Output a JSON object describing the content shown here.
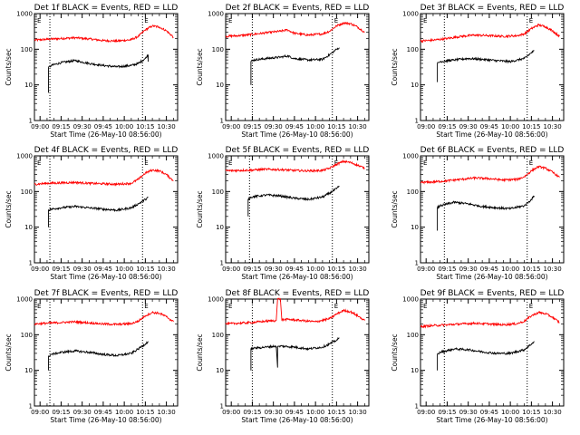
{
  "chart_data": {
    "type": "line",
    "panel_grid": {
      "columns": 3,
      "rows": 3
    },
    "common": {
      "xlabel": "Start Time (26-May-10 08:56:00)",
      "ylabel": "Counts/sec",
      "y_scale": "log",
      "ylim": [
        1,
        1000
      ],
      "xlim": [
        "08:56",
        "10:38"
      ],
      "y_ticks": [
        "1",
        "10",
        "100",
        "1000"
      ],
      "x_ticks": [
        "09:00",
        "09:15",
        "09:30",
        "09:45",
        "10:00",
        "10:15",
        "10:30"
      ],
      "marker_label": "E",
      "grid": false,
      "series": [
        {
          "name": "Events",
          "color": "#000000"
        },
        {
          "name": "LLD",
          "color": "#ff0000"
        }
      ]
    },
    "panels": [
      {
        "title": "Det 1f BLACK = Events, RED = LLD",
        "vlines": [
          "09:07",
          "10:13"
        ],
        "series_values": {
          "Events": {
            "x": [
              "09:06",
              "09:06",
              "09:08",
              "09:15",
              "09:25",
              "09:35",
              "09:45",
              "09:55",
              "10:05",
              "10:10",
              "10:15",
              "10:17",
              "10:17"
            ],
            "y": [
              6,
              30,
              35,
              42,
              48,
              40,
              35,
              32,
              35,
              40,
              55,
              70,
              45
            ]
          },
          "LLD": {
            "x": [
              "08:56",
              "09:05",
              "09:15",
              "09:25",
              "09:35",
              "09:45",
              "09:55",
              "10:05",
              "10:10",
              "10:15",
              "10:20",
              "10:25",
              "10:30",
              "10:35"
            ],
            "y": [
              180,
              190,
              200,
              210,
              195,
              175,
              170,
              185,
              230,
              350,
              450,
              420,
              330,
              220
            ]
          }
        }
      },
      {
        "title": "Det 2f BLACK = Events, RED = LLD",
        "vlines": [
          "09:15",
          "10:12"
        ],
        "series_values": {
          "Events": {
            "x": [
              "09:14",
              "09:14",
              "09:16",
              "09:25",
              "09:35",
              "09:40",
              "09:45",
              "09:55",
              "10:05",
              "10:10",
              "10:15",
              "10:17"
            ],
            "y": [
              10,
              45,
              50,
              55,
              60,
              65,
              55,
              50,
              52,
              70,
              100,
              110
            ]
          },
          "LLD": {
            "x": [
              "08:56",
              "09:05",
              "09:15",
              "09:25",
              "09:35",
              "09:40",
              "09:45",
              "09:55",
              "10:05",
              "10:10",
              "10:15",
              "10:20",
              "10:25",
              "10:30",
              "10:35"
            ],
            "y": [
              230,
              240,
              260,
              290,
              320,
              350,
              280,
              250,
              270,
              320,
              450,
              550,
              520,
              420,
              300
            ]
          }
        }
      },
      {
        "title": "Det 3f BLACK = Events, RED = LLD",
        "vlines": [
          "09:13",
          "10:12"
        ],
        "series_values": {
          "Events": {
            "x": [
              "09:08",
              "09:08",
              "09:10",
              "09:20",
              "09:30",
              "09:40",
              "09:50",
              "10:00",
              "10:10",
              "10:15",
              "10:17"
            ],
            "y": [
              12,
              40,
              45,
              50,
              55,
              52,
              48,
              45,
              55,
              80,
              90
            ]
          },
          "LLD": {
            "x": [
              "08:56",
              "09:05",
              "09:15",
              "09:25",
              "09:35",
              "09:45",
              "09:55",
              "10:05",
              "10:10",
              "10:15",
              "10:20",
              "10:25",
              "10:30",
              "10:35"
            ],
            "y": [
              170,
              180,
              200,
              230,
              250,
              240,
              230,
              240,
              270,
              380,
              480,
              430,
              330,
              230
            ]
          }
        }
      },
      {
        "title": "Det 4f BLACK = Events, RED = LLD",
        "vlines": [
          "09:07",
          "10:13"
        ],
        "series_values": {
          "Events": {
            "x": [
              "09:06",
              "09:06",
              "09:08",
              "09:15",
              "09:25",
              "09:35",
              "09:45",
              "09:55",
              "10:05",
              "10:10",
              "10:15",
              "10:17"
            ],
            "y": [
              10,
              30,
              32,
              35,
              38,
              35,
              32,
              30,
              35,
              45,
              60,
              70
            ]
          },
          "LLD": {
            "x": [
              "08:56",
              "09:05",
              "09:15",
              "09:25",
              "09:35",
              "09:45",
              "09:55",
              "10:05",
              "10:10",
              "10:15",
              "10:20",
              "10:25",
              "10:30",
              "10:35"
            ],
            "y": [
              160,
              170,
              175,
              180,
              170,
              165,
              160,
              170,
              220,
              330,
              400,
              380,
              300,
              200
            ]
          }
        }
      },
      {
        "title": "Det 5f BLACK = Events, RED = LLD",
        "vlines": [
          "09:13",
          "10:12"
        ],
        "series_values": {
          "Events": {
            "x": [
              "09:12",
              "09:12",
              "09:14",
              "09:25",
              "09:35",
              "09:45",
              "09:55",
              "10:05",
              "10:10",
              "10:15",
              "10:17"
            ],
            "y": [
              20,
              60,
              70,
              80,
              75,
              65,
              60,
              70,
              90,
              120,
              140
            ]
          },
          "LLD": {
            "x": [
              "08:56",
              "09:05",
              "09:15",
              "09:25",
              "09:35",
              "09:45",
              "09:55",
              "10:05",
              "10:10",
              "10:15",
              "10:20",
              "10:25",
              "10:30",
              "10:35"
            ],
            "y": [
              380,
              390,
              400,
              420,
              410,
              390,
              380,
              390,
              450,
              580,
              700,
              650,
              550,
              450
            ]
          }
        }
      },
      {
        "title": "Det 6f BLACK = Events, RED = LLD",
        "vlines": [
          "09:13",
          "10:12"
        ],
        "series_values": {
          "Events": {
            "x": [
              "09:08",
              "09:08",
              "09:10",
              "09:20",
              "09:30",
              "09:40",
              "09:50",
              "10:00",
              "10:10",
              "10:15",
              "10:17"
            ],
            "y": [
              8,
              35,
              40,
              50,
              45,
              38,
              35,
              33,
              40,
              60,
              75
            ]
          },
          "LLD": {
            "x": [
              "08:56",
              "09:05",
              "09:15",
              "09:25",
              "09:35",
              "09:45",
              "09:55",
              "10:05",
              "10:10",
              "10:15",
              "10:20",
              "10:25",
              "10:30",
              "10:35"
            ],
            "y": [
              180,
              185,
              200,
              220,
              240,
              230,
              210,
              220,
              260,
              380,
              500,
              450,
              350,
              250
            ]
          }
        }
      },
      {
        "title": "Det 7f BLACK = Events, RED = LLD",
        "vlines": [
          "09:07",
          "10:13"
        ],
        "series_values": {
          "Events": {
            "x": [
              "09:06",
              "09:06",
              "09:08",
              "09:15",
              "09:25",
              "09:35",
              "09:45",
              "09:55",
              "10:05",
              "10:10",
              "10:15",
              "10:17"
            ],
            "y": [
              10,
              25,
              28,
              32,
              35,
              32,
              28,
              26,
              30,
              40,
              55,
              65
            ]
          },
          "LLD": {
            "x": [
              "08:56",
              "09:05",
              "09:15",
              "09:25",
              "09:35",
              "09:45",
              "09:55",
              "10:05",
              "10:10",
              "10:15",
              "10:20",
              "10:25",
              "10:30",
              "10:35"
            ],
            "y": [
              200,
              210,
              220,
              230,
              215,
              200,
              195,
              205,
              240,
              340,
              420,
              400,
              320,
              230
            ]
          }
        }
      },
      {
        "title": "Det 8f BLACK = Events, RED = LLD",
        "vlines": [
          "09:15",
          "10:12"
        ],
        "series_values": {
          "Events": {
            "x": [
              "09:14",
              "09:14",
              "09:16",
              "09:25",
              "09:32",
              "09:33",
              "09:33",
              "09:35",
              "09:45",
              "09:55",
              "10:05",
              "10:10",
              "10:15",
              "10:17"
            ],
            "y": [
              10,
              40,
              42,
              45,
              48,
              12,
              45,
              48,
              45,
              40,
              45,
              55,
              70,
              80
            ]
          },
          "LLD": {
            "x": [
              "08:56",
              "09:05",
              "09:15",
              "09:25",
              "09:32",
              "09:33",
              "09:35",
              "09:36",
              "09:40",
              "09:50",
              "10:00",
              "10:10",
              "10:15",
              "10:20",
              "10:25",
              "10:30",
              "10:35"
            ],
            "y": [
              200,
              210,
              220,
              240,
              250,
              1000,
              1000,
              260,
              270,
              250,
              230,
              280,
              380,
              480,
              440,
              340,
              250
            ]
          }
        }
      },
      {
        "title": "Det 9f BLACK = Events, RED = LLD",
        "vlines": [
          "09:13",
          "10:12"
        ],
        "series_values": {
          "Events": {
            "x": [
              "09:08",
              "09:08",
              "09:10",
              "09:20",
              "09:30",
              "09:40",
              "09:50",
              "10:00",
              "10:10",
              "10:15",
              "10:17"
            ],
            "y": [
              10,
              28,
              32,
              40,
              38,
              33,
              30,
              30,
              38,
              55,
              65
            ]
          },
          "LLD": {
            "x": [
              "08:56",
              "09:05",
              "09:15",
              "09:25",
              "09:35",
              "09:45",
              "09:55",
              "10:05",
              "10:10",
              "10:15",
              "10:20",
              "10:25",
              "10:30",
              "10:35"
            ],
            "y": [
              170,
              180,
              190,
              200,
              210,
              200,
              190,
              205,
              240,
              340,
              420,
              390,
              310,
              220
            ]
          }
        }
      }
    ]
  }
}
